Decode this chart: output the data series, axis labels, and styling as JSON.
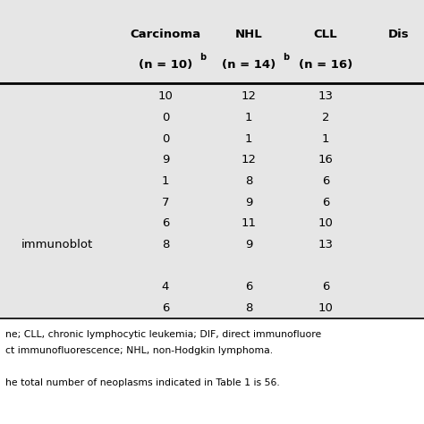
{
  "bg_color": "#e6e6e6",
  "footer_bg": "#ffffff",
  "col_headers": [
    {
      "line1": "Carcinoma",
      "line2": "(n = 10)",
      "sup": "b"
    },
    {
      "line1": "NHL",
      "line2": "(n = 14)",
      "sup": "b"
    },
    {
      "line1": "CLL",
      "line2": "(n = 16)",
      "sup": ""
    },
    {
      "line1": "Dis",
      "line2": "",
      "sup": ""
    }
  ],
  "rows": [
    {
      "label": "",
      "vals": [
        "10",
        "12",
        "13"
      ]
    },
    {
      "label": "",
      "vals": [
        "0",
        "1",
        "2"
      ]
    },
    {
      "label": "",
      "vals": [
        "0",
        "1",
        "1"
      ]
    },
    {
      "label": "",
      "vals": [
        "9",
        "12",
        "16"
      ]
    },
    {
      "label": "",
      "vals": [
        "1",
        "8",
        "6"
      ]
    },
    {
      "label": "",
      "vals": [
        "7",
        "9",
        "6"
      ]
    },
    {
      "label": "",
      "vals": [
        "6",
        "11",
        "10"
      ]
    },
    {
      "label": "immunoblot",
      "vals": [
        "8",
        "9",
        "13"
      ]
    },
    {
      "label": "",
      "vals": [
        "",
        "",
        ""
      ]
    },
    {
      "label": "",
      "vals": [
        "4",
        "6",
        "6"
      ]
    },
    {
      "label": "",
      "vals": [
        "6",
        "8",
        "10"
      ]
    }
  ],
  "footer_lines": [
    "ne; CLL, chronic lymphocytic leukemia; DIF, direct immunofluore",
    "ct immunofluorescence; NHL, non-Hodgkin lymphoma.",
    "",
    "he total number of neoplasms indicated in Table 1 is 56."
  ],
  "header_fontsize": 9.5,
  "data_fontsize": 9.5,
  "footer_fontsize": 7.8,
  "label_fontsize": 9.5
}
